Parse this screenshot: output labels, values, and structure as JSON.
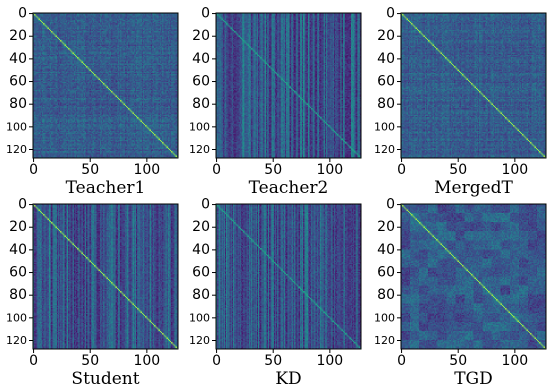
{
  "chart_data": {
    "type": "heatmap",
    "description_of_values": "128x128 similarity matrices with a strong diagonal",
    "matrix_size": 128,
    "colormap": "viridis",
    "x_ticks": [
      0,
      50,
      100
    ],
    "y_ticks": [
      0,
      20,
      40,
      60,
      80,
      100,
      120
    ],
    "x_tick_labels": [
      "0",
      "50",
      "100"
    ],
    "y_tick_labels": [
      "0",
      "20",
      "40",
      "60",
      "80",
      "100",
      "120"
    ],
    "grid": false,
    "legend": "none",
    "panels": [
      {
        "title": "Teacher1",
        "texture": "fine-noise",
        "diagonal": "visible"
      },
      {
        "title": "Teacher2",
        "texture": "vertical-stripes",
        "diagonal": "faint"
      },
      {
        "title": "MergedT",
        "texture": "fine-noise",
        "diagonal": "visible"
      },
      {
        "title": "Student",
        "texture": "vertical-stripes",
        "diagonal": "visible"
      },
      {
        "title": "KD",
        "texture": "vertical-stripes",
        "diagonal": "faint"
      },
      {
        "title": "TGD",
        "texture": "block-noise",
        "diagonal": "visible"
      }
    ]
  }
}
